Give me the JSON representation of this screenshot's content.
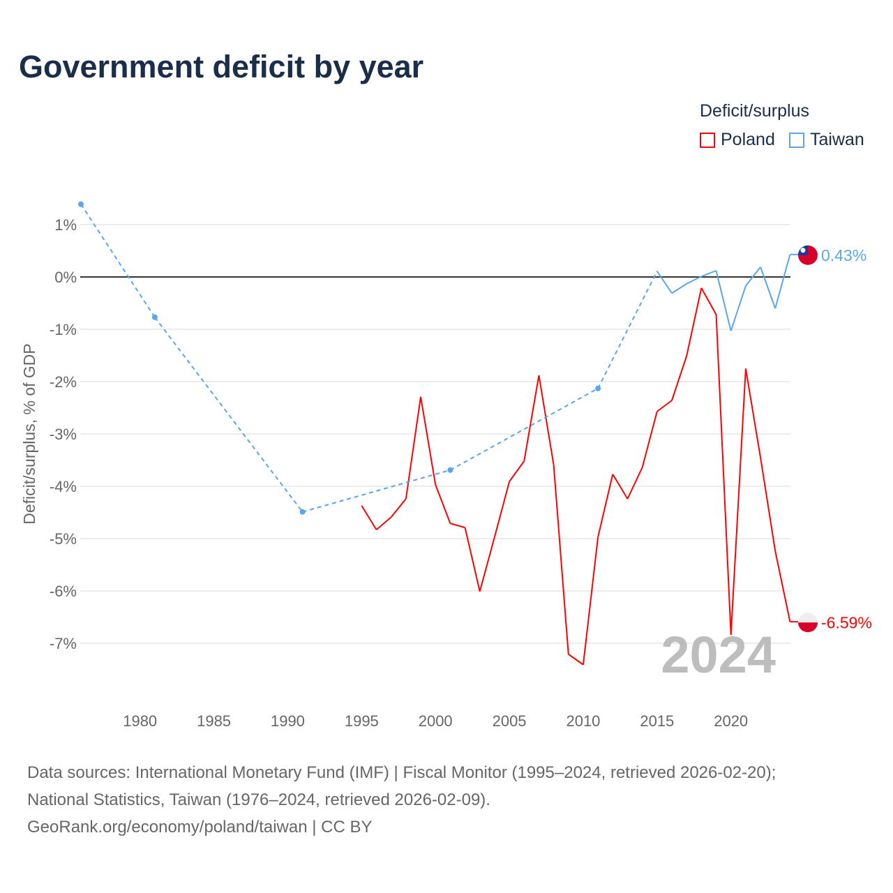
{
  "title": "Government deficit by year",
  "legend": {
    "title": "Deficit/surplus",
    "items": [
      {
        "name": "Poland",
        "color": "#ff0000"
      },
      {
        "name": "Taiwan",
        "color": "#5aa5ec"
      }
    ]
  },
  "source_lines": [
    "Data sources: International Monetary Fund (IMF) | Fiscal Monitor (1995–2024, retrieved 2026-02-20);",
    "National Statistics, Taiwan (1976–2024, retrieved 2026-02-09).",
    "GeoRank.org/economy/poland/taiwan | CC BY"
  ],
  "chart_data": {
    "type": "line",
    "title": "Government deficit by year",
    "xlabel": "",
    "ylabel": "Deficit/surplus, % of GDP",
    "xlim": [
      1976,
      2024
    ],
    "ylim": [
      -8,
      1.5
    ],
    "xticks": [
      1980,
      1985,
      1990,
      1995,
      2000,
      2005,
      2010,
      2015,
      2020
    ],
    "yticks": [
      1,
      0,
      -1,
      -2,
      -3,
      -4,
      -5,
      -6,
      -7
    ],
    "ytick_labels": [
      "1%",
      "0%",
      "-1%",
      "-2%",
      "-3%",
      "-4%",
      "-5%",
      "-6%",
      "-7%"
    ],
    "year_watermark": "2024",
    "grid": true,
    "legend_position": "top-right",
    "series": [
      {
        "name": "Poland",
        "color": "#ff0000",
        "end_label": "-6.59%",
        "x": [
          1995,
          1996,
          1997,
          1998,
          1999,
          2000,
          2001,
          2002,
          2003,
          2004,
          2005,
          2006,
          2007,
          2008,
          2009,
          2010,
          2011,
          2012,
          2013,
          2014,
          2015,
          2016,
          2017,
          2018,
          2019,
          2020,
          2021,
          2022,
          2023,
          2024
        ],
        "values": [
          -4.37,
          -4.83,
          -4.59,
          -4.24,
          -2.29,
          -3.97,
          -4.71,
          -4.79,
          -6.01,
          -4.97,
          -3.91,
          -3.52,
          -1.88,
          -3.59,
          -7.21,
          -7.41,
          -4.97,
          -3.77,
          -4.24,
          -3.64,
          -2.57,
          -2.36,
          -1.51,
          -0.21,
          -0.72,
          -6.84,
          -1.75,
          -3.45,
          -5.24,
          -6.59
        ]
      },
      {
        "name": "Taiwan",
        "color": "#5aa5ec",
        "end_label": "0.43%",
        "x": [
          1976,
          1981,
          1991,
          2001,
          2011,
          2015,
          2016,
          2017,
          2018,
          2019,
          2020,
          2021,
          2022,
          2023,
          2024
        ],
        "values": [
          1.39,
          -0.77,
          -4.49,
          -3.69,
          -2.13,
          0.11,
          -0.31,
          -0.13,
          0.01,
          0.12,
          -1.03,
          -0.17,
          0.19,
          -0.6,
          0.43
        ]
      }
    ]
  }
}
